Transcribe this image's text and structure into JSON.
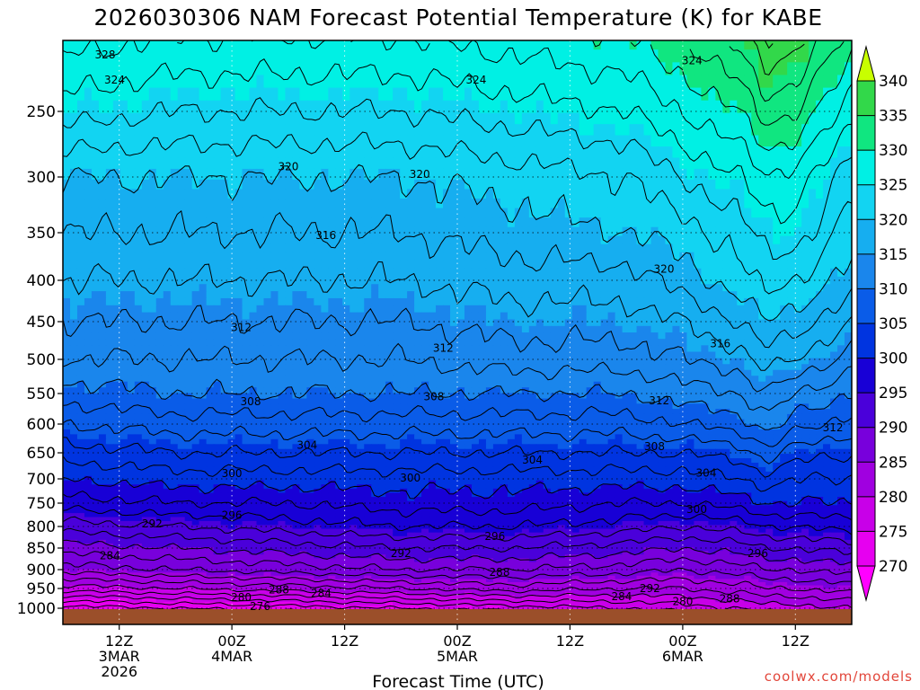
{
  "chart_data": {
    "type": "heatmap",
    "title": "2026030306 NAM Forecast Potential Temperature (K) for KABE",
    "xlabel": "Forecast Time (UTC)",
    "ylabel": "",
    "credit": "coolwx.com/models",
    "x_axis": {
      "unit": "forecast hour",
      "range": [
        0,
        84
      ],
      "ticks": [
        {
          "hour": 6,
          "lines": [
            "12Z",
            "3MAR",
            "2026"
          ]
        },
        {
          "hour": 18,
          "lines": [
            "00Z",
            "4MAR"
          ]
        },
        {
          "hour": 30,
          "lines": [
            "12Z"
          ]
        },
        {
          "hour": 42,
          "lines": [
            "00Z",
            "5MAR"
          ]
        },
        {
          "hour": 54,
          "lines": [
            "12Z"
          ]
        },
        {
          "hour": 66,
          "lines": [
            "00Z",
            "6MAR"
          ]
        },
        {
          "hour": 78,
          "lines": [
            "12Z"
          ]
        }
      ]
    },
    "y_axis": {
      "unit": "hPa",
      "range": [
        1010,
        200
      ],
      "ticks": [
        250,
        300,
        350,
        400,
        450,
        500,
        550,
        600,
        650,
        700,
        750,
        800,
        850,
        900,
        950,
        1000
      ]
    },
    "colorbar": {
      "levels": [
        270,
        275,
        280,
        285,
        290,
        295,
        300,
        305,
        310,
        315,
        320,
        325,
        330,
        335,
        340
      ],
      "colors": [
        "#ff00ff",
        "#e600f0",
        "#c800e8",
        "#a000e0",
        "#7800dc",
        "#4a00da",
        "#1800d6",
        "#0034e0",
        "#0a5ce8",
        "#1a86ec",
        "#16aef0",
        "#12d4f2",
        "#00f0e4",
        "#10e680",
        "#32d84a",
        "#8cf000",
        "#c8ff00"
      ]
    },
    "theta_profiles": {
      "pressure_levels": [
        1000,
        950,
        900,
        850,
        800,
        750,
        700,
        650,
        600,
        550,
        500,
        450,
        400,
        350,
        300,
        250,
        200
      ],
      "times": [
        0,
        12,
        24,
        36,
        48,
        60,
        66,
        72,
        75,
        78,
        84
      ],
      "values": [
        [
          271,
          279,
          285,
          289,
          293,
          297,
          300,
          303,
          306,
          309,
          312,
          314,
          316,
          318,
          320,
          325,
          329
        ],
        [
          272,
          280,
          286,
          290,
          294,
          298,
          301,
          304,
          307,
          310,
          312,
          314,
          316,
          318,
          320,
          324,
          328
        ],
        [
          273,
          281,
          287,
          291,
          295,
          298,
          301,
          304,
          307,
          310,
          312,
          314,
          316,
          318,
          320,
          324,
          328
        ],
        [
          274,
          282,
          288,
          292,
          296,
          299,
          301,
          304,
          307,
          310,
          312,
          314,
          316,
          318,
          320,
          324,
          328
        ],
        [
          275,
          283,
          288,
          292,
          296,
          299,
          301,
          304,
          307,
          310,
          313,
          315,
          317,
          319,
          321,
          325,
          329
        ],
        [
          276,
          282,
          287,
          291,
          295,
          298,
          301,
          304,
          307,
          310,
          313,
          315,
          317,
          320,
          322,
          326,
          330
        ],
        [
          277,
          282,
          286,
          290,
          294,
          298,
          301,
          304,
          308,
          311,
          314,
          316,
          319,
          321,
          324,
          328,
          332
        ],
        [
          278,
          283,
          287,
          291,
          295,
          299,
          302,
          305,
          309,
          312,
          315,
          318,
          321,
          323,
          326,
          330,
          335
        ],
        [
          279,
          284,
          288,
          292,
          296,
          300,
          303,
          307,
          311,
          314,
          317,
          320,
          323,
          325,
          328,
          333,
          338
        ],
        [
          279,
          284,
          288,
          292,
          296,
          300,
          302,
          305,
          309,
          312,
          316,
          319,
          322,
          325,
          327,
          332,
          337
        ],
        [
          280,
          285,
          289,
          293,
          297,
          300,
          302,
          304,
          307,
          310,
          313,
          316,
          319,
          321,
          323,
          327,
          331
        ]
      ]
    },
    "contour_interval": 2,
    "contour_labels": [
      {
        "value": 328,
        "hour": 4.5,
        "p": 212
      },
      {
        "value": 324,
        "hour": 5.5,
        "p": 229
      },
      {
        "value": 324,
        "hour": 44,
        "p": 229
      },
      {
        "value": 324,
        "hour": 67,
        "p": 216
      },
      {
        "value": 320,
        "hour": 24,
        "p": 292
      },
      {
        "value": 320,
        "hour": 38,
        "p": 298
      },
      {
        "value": 320,
        "hour": 64,
        "p": 388
      },
      {
        "value": 316,
        "hour": 28,
        "p": 353
      },
      {
        "value": 316,
        "hour": 70,
        "p": 479
      },
      {
        "value": 312,
        "hour": 19,
        "p": 458
      },
      {
        "value": 312,
        "hour": 40.5,
        "p": 485
      },
      {
        "value": 312,
        "hour": 63.5,
        "p": 562
      },
      {
        "value": 312,
        "hour": 82,
        "p": 606
      },
      {
        "value": 308,
        "hour": 20,
        "p": 563
      },
      {
        "value": 308,
        "hour": 39.5,
        "p": 555
      },
      {
        "value": 308,
        "hour": 63,
        "p": 639
      },
      {
        "value": 304,
        "hour": 26,
        "p": 637
      },
      {
        "value": 304,
        "hour": 50,
        "p": 664
      },
      {
        "value": 304,
        "hour": 68.5,
        "p": 689
      },
      {
        "value": 300,
        "hour": 18,
        "p": 690
      },
      {
        "value": 300,
        "hour": 37,
        "p": 698
      },
      {
        "value": 300,
        "hour": 67.5,
        "p": 763
      },
      {
        "value": 296,
        "hour": 18,
        "p": 776
      },
      {
        "value": 296,
        "hour": 46,
        "p": 823
      },
      {
        "value": 296,
        "hour": 74,
        "p": 862
      },
      {
        "value": 292,
        "hour": 9.5,
        "p": 794
      },
      {
        "value": 292,
        "hour": 36,
        "p": 863
      },
      {
        "value": 292,
        "hour": 62.5,
        "p": 950
      },
      {
        "value": 288,
        "hour": 46.5,
        "p": 907
      },
      {
        "value": 288,
        "hour": 23,
        "p": 953
      },
      {
        "value": 288,
        "hour": 71,
        "p": 976
      },
      {
        "value": 284,
        "hour": 5,
        "p": 868
      },
      {
        "value": 284,
        "hour": 27.5,
        "p": 963
      },
      {
        "value": 284,
        "hour": 59.5,
        "p": 971
      },
      {
        "value": 280,
        "hour": 19,
        "p": 973
      },
      {
        "value": 280,
        "hour": 66,
        "p": 983
      },
      {
        "value": 276,
        "hour": 21,
        "p": 995
      }
    ]
  }
}
